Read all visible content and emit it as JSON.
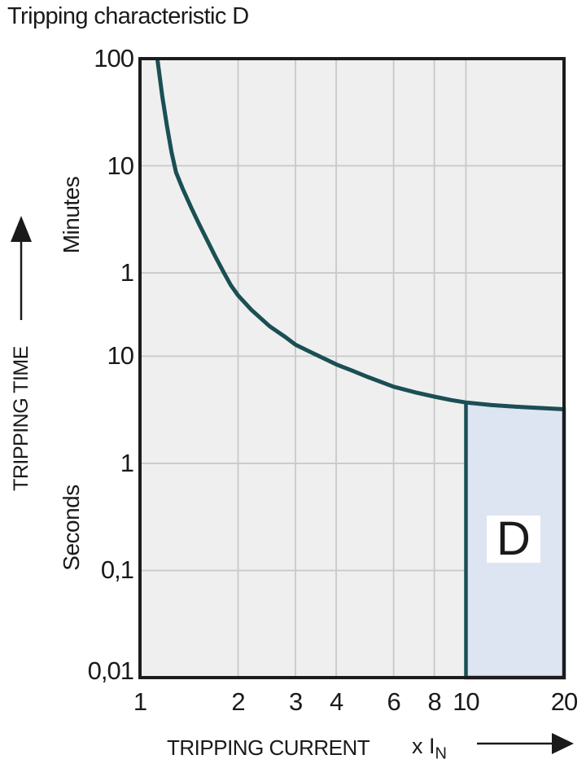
{
  "title": "Tripping characteristic D",
  "colors": {
    "curve": "#1a4f54",
    "region_fill": "#dde4f2",
    "region_border": "#1a4f54",
    "grid": "#c9c9c9",
    "plot_bg": "#efefef",
    "frame": "#1c1c1c",
    "text": "#1a1a1a"
  },
  "chart_data": {
    "type": "line",
    "title": "Tripping characteristic D",
    "x_axis": {
      "label": "TRIPPING CURRENT",
      "unit_prefix": "x I",
      "unit_sub": "N",
      "scale": "log",
      "range": [
        1,
        20
      ],
      "ticks": [
        {
          "label": "1",
          "v": 1
        },
        {
          "label": "2",
          "v": 2
        },
        {
          "label": "3",
          "v": 3
        },
        {
          "label": "4",
          "v": 4
        },
        {
          "label": "6",
          "v": 6
        },
        {
          "label": "8",
          "v": 8
        },
        {
          "label": "10",
          "v": 10
        },
        {
          "label": "20",
          "v": 20
        }
      ],
      "gridlines": [
        2,
        3,
        4,
        6,
        8,
        10
      ]
    },
    "y_axis": {
      "label": "TRIPPING TIME",
      "unit_upper": "Minutes",
      "unit_lower": "Seconds",
      "scale": "log",
      "range_seconds": [
        0.01,
        6000
      ],
      "ticks": [
        {
          "label": "100",
          "seconds": 6000
        },
        {
          "label": "10",
          "seconds": 600
        },
        {
          "label": "1",
          "seconds": 60
        },
        {
          "label": "10",
          "seconds": 10
        },
        {
          "label": "1",
          "seconds": 1
        },
        {
          "label": "0,1",
          "seconds": 0.1
        },
        {
          "label": "0,01",
          "seconds": 0.01
        }
      ],
      "gridlines_seconds": [
        600,
        60,
        10,
        1,
        0.1
      ]
    },
    "series": [
      {
        "name": "tripping-curve",
        "points": [
          [
            1.13,
            6000
          ],
          [
            1.17,
            2700
          ],
          [
            1.21,
            1400
          ],
          [
            1.25,
            800
          ],
          [
            1.29,
            520
          ],
          [
            1.35,
            370
          ],
          [
            1.44,
            240
          ],
          [
            1.52,
            170
          ],
          [
            1.61,
            120
          ],
          [
            1.7,
            86
          ],
          [
            1.81,
            60
          ],
          [
            1.9,
            46
          ],
          [
            2.0,
            37
          ],
          [
            2.2,
            27
          ],
          [
            2.5,
            19
          ],
          [
            2.8,
            15
          ],
          [
            3.0,
            12.8
          ],
          [
            3.5,
            10.2
          ],
          [
            4.0,
            8.4
          ],
          [
            4.5,
            7.3
          ],
          [
            5.0,
            6.4
          ],
          [
            6.0,
            5.2
          ],
          [
            7.0,
            4.6
          ],
          [
            8.0,
            4.2
          ],
          [
            9.0,
            3.9
          ],
          [
            10.0,
            3.7
          ],
          [
            12.0,
            3.5
          ],
          [
            15.0,
            3.35
          ],
          [
            20.0,
            3.2
          ]
        ]
      }
    ],
    "region": {
      "label": "D",
      "v_range": [
        10,
        20
      ],
      "top_points": [
        [
          10,
          3.7
        ],
        [
          12,
          3.5
        ],
        [
          15,
          3.35
        ],
        [
          20,
          3.2
        ]
      ],
      "t_bottom_seconds": 0.01
    }
  }
}
